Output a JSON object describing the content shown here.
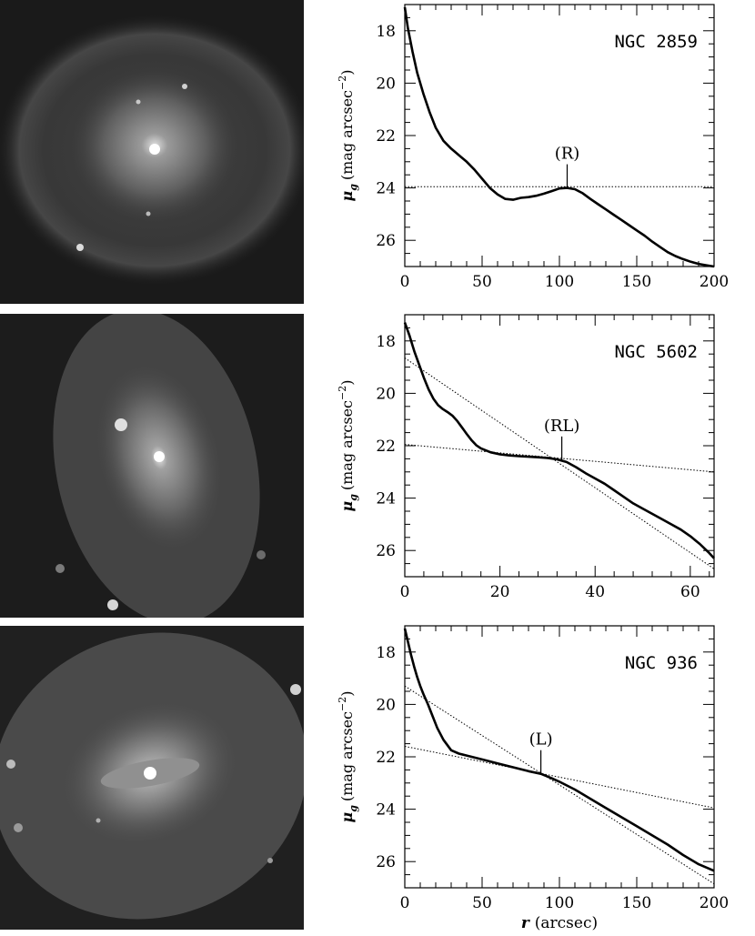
{
  "chart_data": [
    {
      "type": "line",
      "galaxy": "NGC 2859",
      "ylabel_sym": "μ",
      "ylabel_sub": "g",
      "ylabel_unit": "(mag arcsec",
      "ylabel_exp": "−2",
      "ylabel_close": ")",
      "xlabel": "",
      "xlim": [
        0,
        200
      ],
      "ylim": [
        27,
        17
      ],
      "xticks": [
        "0",
        "50",
        "100",
        "150",
        "200"
      ],
      "yticks": [
        "18",
        "20",
        "22",
        "24",
        "26"
      ],
      "annotation": {
        "text": "(R)",
        "x": 105,
        "y": 24.0
      },
      "series": [
        {
          "style": "solid",
          "x": [
            0,
            2,
            5,
            8,
            12,
            16,
            20,
            25,
            30,
            35,
            40,
            45,
            50,
            55,
            60,
            65,
            70,
            75,
            80,
            85,
            90,
            95,
            100,
            105,
            110,
            115,
            120,
            125,
            130,
            135,
            140,
            145,
            150,
            155,
            160,
            165,
            170,
            175,
            180,
            185,
            190,
            195,
            200
          ],
          "y": [
            17.1,
            17.9,
            18.8,
            19.6,
            20.4,
            21.1,
            21.7,
            22.2,
            22.5,
            22.75,
            23.0,
            23.3,
            23.65,
            24.0,
            24.25,
            24.42,
            24.45,
            24.38,
            24.35,
            24.3,
            24.22,
            24.12,
            24.02,
            24.0,
            24.05,
            24.2,
            24.42,
            24.62,
            24.82,
            25.02,
            25.22,
            25.42,
            25.62,
            25.82,
            26.05,
            26.25,
            26.45,
            26.6,
            26.72,
            26.82,
            26.9,
            26.95,
            27.0
          ]
        },
        {
          "style": "dotted",
          "x": [
            0,
            200
          ],
          "y": [
            23.95,
            23.95
          ]
        }
      ]
    },
    {
      "type": "line",
      "galaxy": "NGC 5602",
      "ylabel_sym": "μ",
      "ylabel_sub": "g",
      "ylabel_unit": "(mag arcsec",
      "ylabel_exp": "−2",
      "ylabel_close": ")",
      "xlabel": "",
      "xlim": [
        0,
        65
      ],
      "ylim": [
        27,
        17
      ],
      "xticks": [
        "0",
        "20",
        "40",
        "60"
      ],
      "yticks": [
        "18",
        "20",
        "22",
        "24",
        "26"
      ],
      "annotation": {
        "text": "(RL)",
        "x": 33,
        "y": 22.55
      },
      "series": [
        {
          "style": "solid",
          "x": [
            0,
            1,
            2,
            3,
            4,
            5,
            6,
            7,
            8,
            9,
            10,
            11,
            12,
            13,
            14,
            15,
            16,
            18,
            20,
            22,
            24,
            26,
            28,
            30,
            32,
            34,
            36,
            38,
            40,
            42,
            44,
            46,
            48,
            50,
            52,
            54,
            56,
            58,
            60,
            62,
            64,
            65
          ],
          "y": [
            17.3,
            17.8,
            18.4,
            18.9,
            19.4,
            19.85,
            20.2,
            20.45,
            20.6,
            20.72,
            20.85,
            21.05,
            21.3,
            21.55,
            21.78,
            21.98,
            22.1,
            22.25,
            22.33,
            22.37,
            22.4,
            22.42,
            22.44,
            22.47,
            22.52,
            22.62,
            22.82,
            23.05,
            23.25,
            23.45,
            23.7,
            23.95,
            24.2,
            24.4,
            24.6,
            24.8,
            25.0,
            25.2,
            25.45,
            25.75,
            26.1,
            26.3
          ]
        },
        {
          "style": "dotted",
          "x": [
            0,
            65
          ],
          "y": [
            18.65,
            26.7
          ]
        },
        {
          "style": "dotted",
          "x": [
            0,
            65
          ],
          "y": [
            21.95,
            23.0
          ]
        }
      ]
    },
    {
      "type": "line",
      "galaxy": "NGC 936",
      "ylabel_sym": "μ",
      "ylabel_sub": "g",
      "ylabel_unit": "(mag arcsec",
      "ylabel_exp": "−2",
      "ylabel_close": ")",
      "xlabel_sym": "r",
      "xlabel": "(arcsec)",
      "xlim": [
        0,
        200
      ],
      "ylim": [
        27,
        17
      ],
      "xticks": [
        "0",
        "50",
        "100",
        "150",
        "200"
      ],
      "yticks": [
        "18",
        "20",
        "22",
        "24",
        "26"
      ],
      "annotation": {
        "text": "(L)",
        "x": 88,
        "y": 22.65
      },
      "series": [
        {
          "style": "solid",
          "x": [
            0,
            2,
            4,
            6,
            8,
            10,
            12,
            15,
            18,
            21,
            25,
            30,
            35,
            40,
            50,
            60,
            70,
            80,
            88,
            95,
            100,
            110,
            120,
            130,
            140,
            150,
            160,
            170,
            180,
            190,
            200
          ],
          "y": [
            17.1,
            17.6,
            18.1,
            18.55,
            18.95,
            19.3,
            19.6,
            20.0,
            20.45,
            20.9,
            21.35,
            21.75,
            21.88,
            21.95,
            22.1,
            22.25,
            22.4,
            22.55,
            22.65,
            22.82,
            22.95,
            23.25,
            23.6,
            23.95,
            24.3,
            24.65,
            25.0,
            25.35,
            25.75,
            26.1,
            26.35
          ]
        },
        {
          "style": "dotted",
          "x": [
            0,
            200
          ],
          "y": [
            19.3,
            26.85
          ]
        },
        {
          "style": "dotted",
          "x": [
            0,
            200
          ],
          "y": [
            21.6,
            23.95
          ]
        }
      ]
    }
  ]
}
